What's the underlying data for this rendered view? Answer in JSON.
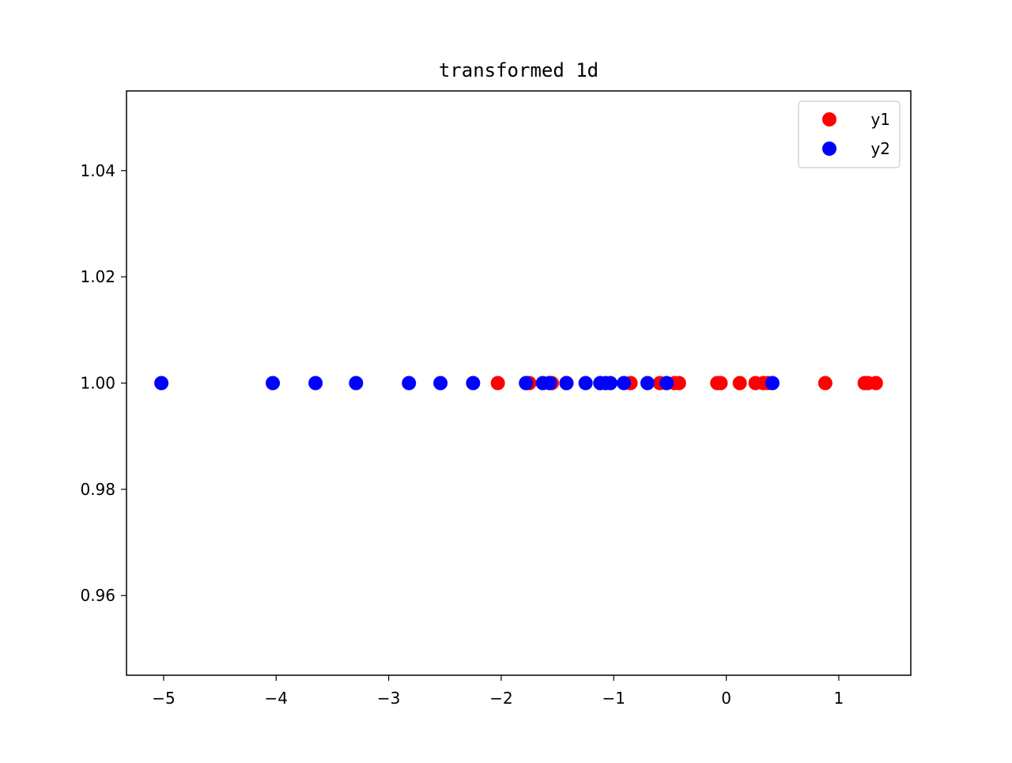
{
  "chart_data": {
    "type": "scatter",
    "title": "transformed 1d",
    "xlabel": "",
    "ylabel": "",
    "xlim": [
      -5.33,
      1.64
    ],
    "ylim": [
      0.945,
      1.055
    ],
    "x_ticks": [
      -5,
      -4,
      -3,
      -2,
      -1,
      0,
      1
    ],
    "x_tick_labels": [
      "−5",
      "−4",
      "−3",
      "−2",
      "−1",
      "0",
      "1"
    ],
    "y_ticks": [
      0.96,
      0.98,
      1.0,
      1.02,
      1.04
    ],
    "y_tick_labels": [
      "0.96",
      "0.98",
      "1.00",
      "1.02",
      "1.04"
    ],
    "grid": false,
    "legend_position": "top-right",
    "series": [
      {
        "name": "y1",
        "color": "#ff0000",
        "x": [
          -2.03,
          -1.75,
          -1.55,
          -1.42,
          -0.85,
          -0.59,
          -0.46,
          -0.42,
          -0.08,
          -0.05,
          0.12,
          0.26,
          0.33,
          0.37,
          0.88,
          1.23,
          1.26,
          1.33
        ],
        "y": [
          1,
          1,
          1,
          1,
          1,
          1,
          1,
          1,
          1,
          1,
          1,
          1,
          1,
          1,
          1,
          1,
          1,
          1
        ]
      },
      {
        "name": "y2",
        "color": "#0000ff",
        "x": [
          -5.02,
          -4.03,
          -3.65,
          -3.29,
          -2.82,
          -2.54,
          -2.25,
          -1.78,
          -1.63,
          -1.57,
          -1.42,
          -1.25,
          -1.12,
          -1.07,
          -1.03,
          -0.91,
          -0.7,
          -0.53,
          0.41
        ],
        "y": [
          1,
          1,
          1,
          1,
          1,
          1,
          1,
          1,
          1,
          1,
          1,
          1,
          1,
          1,
          1,
          1,
          1,
          1,
          1
        ]
      }
    ]
  }
}
